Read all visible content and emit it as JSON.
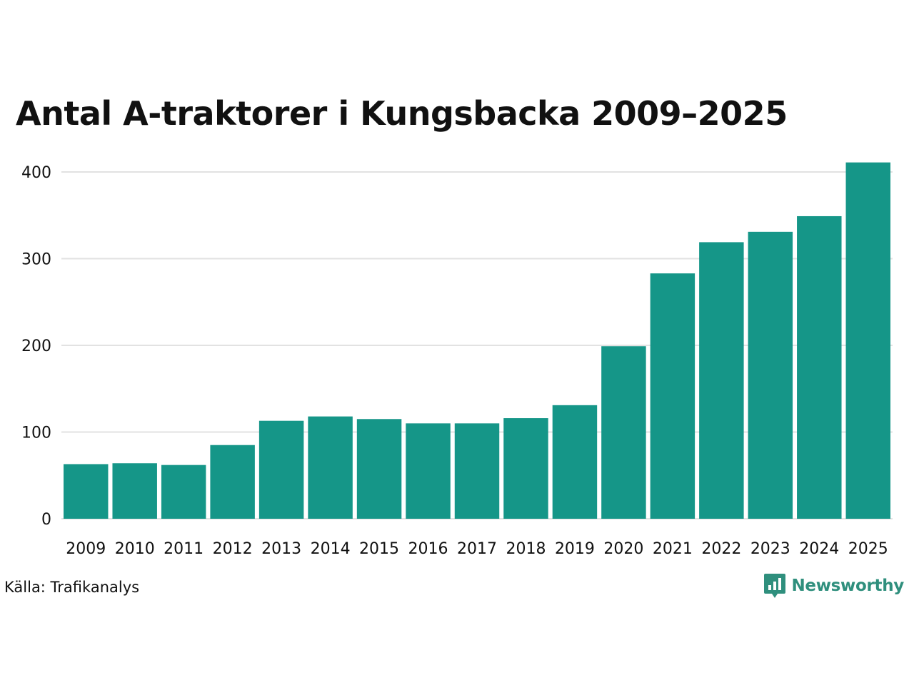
{
  "title": "Antal A-traktorer i Kungsbacka 2009–2025",
  "source": "Källa: Trafikanalys",
  "brand": "Newsworthy",
  "colors": {
    "bar": "#159688",
    "grid": "#e2e2e2",
    "text": "#111111",
    "brand": "#2f8f7d"
  },
  "chart_data": {
    "type": "bar",
    "title": "Antal A-traktorer i Kungsbacka 2009–2025",
    "xlabel": "",
    "ylabel": "",
    "categories": [
      "2009",
      "2010",
      "2011",
      "2012",
      "2013",
      "2014",
      "2015",
      "2016",
      "2017",
      "2018",
      "2019",
      "2020",
      "2021",
      "2022",
      "2023",
      "2024",
      "2025"
    ],
    "values": [
      63,
      64,
      62,
      85,
      113,
      118,
      115,
      110,
      110,
      116,
      131,
      199,
      283,
      319,
      331,
      349,
      411
    ],
    "ylim": [
      0,
      400
    ],
    "yticks": [
      0,
      100,
      200,
      300,
      400
    ],
    "grid": true,
    "legend": "none"
  }
}
